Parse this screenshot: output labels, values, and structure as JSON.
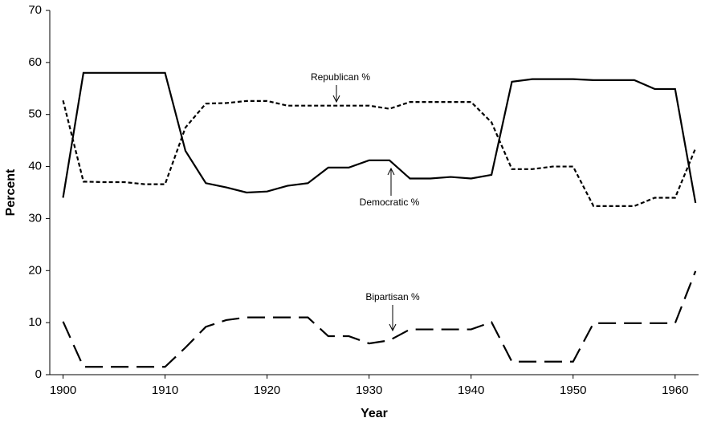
{
  "chart_data": {
    "type": "line",
    "x": [
      1900,
      1902,
      1904,
      1906,
      1908,
      1910,
      1912,
      1914,
      1916,
      1918,
      1920,
      1922,
      1924,
      1926,
      1928,
      1930,
      1932,
      1934,
      1936,
      1938,
      1940,
      1942,
      1944,
      1946,
      1948,
      1950,
      1952,
      1954,
      1956,
      1958,
      1960,
      1962
    ],
    "series": [
      {
        "name": "Republican %",
        "color": "#000000",
        "dash": "solid",
        "values": [
          34,
          58,
          58,
          58,
          58,
          58,
          43,
          36.8,
          36,
          35,
          35.2,
          36.3,
          36.8,
          39.8,
          39.8,
          41.2,
          41.2,
          37.7,
          37.7,
          38,
          37.7,
          38.4,
          56.3,
          56.8,
          56.8,
          56.8,
          56.6,
          56.6,
          56.6,
          54.9,
          54.9,
          33
        ]
      },
      {
        "name": "Democratic %",
        "color": "#000000",
        "dash": "dotted",
        "values": [
          52.7,
          37.1,
          37,
          37,
          36.6,
          36.6,
          47.5,
          52.1,
          52.2,
          52.6,
          52.6,
          51.7,
          51.7,
          51.7,
          51.7,
          51.7,
          51.1,
          52.4,
          52.4,
          52.4,
          52.4,
          48.5,
          39.5,
          39.5,
          40,
          40,
          32.4,
          32.4,
          32.4,
          34,
          34,
          43.5
        ]
      },
      {
        "name": "Bipartisan %",
        "color": "#000000",
        "dash": "dashed",
        "values": [
          10.2,
          1.5,
          1.5,
          1.5,
          1.5,
          1.5,
          5.2,
          9.2,
          10.5,
          11,
          11,
          11,
          11,
          7.4,
          7.4,
          6,
          6.6,
          8.7,
          8.7,
          8.7,
          8.7,
          10.1,
          2.5,
          2.5,
          2.5,
          2.5,
          9.9,
          9.9,
          9.9,
          9.9,
          9.9,
          19.9
        ]
      }
    ],
    "xlabel": "Year",
    "ylabel": "Percent",
    "xlim": [
      1898.7,
      1962.3
    ],
    "ylim": [
      0,
      70
    ],
    "xticks": [
      1900,
      1910,
      1920,
      1930,
      1940,
      1950,
      1960
    ],
    "yticks": [
      0,
      10,
      20,
      30,
      40,
      50,
      60,
      70
    ],
    "grid": false,
    "legend": false
  }
}
